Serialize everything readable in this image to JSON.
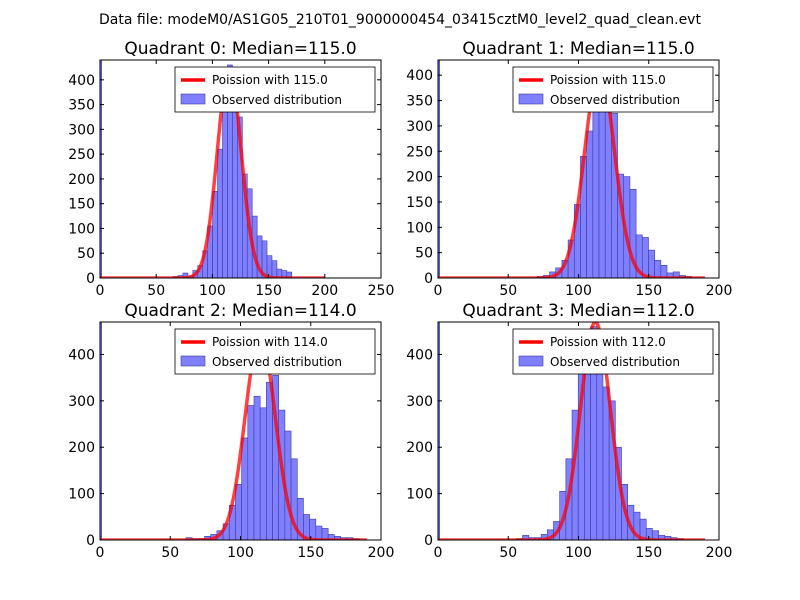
{
  "figure": {
    "suptitle": "Data file: modeM0/AS1G05_210T01_9000000454_03415cztM0_level2_quad_clean.evt",
    "colors": {
      "bar_fill": "#8080ff",
      "bar_edge": "#3a3aa8",
      "curve": "#ff0000",
      "axes": "#000000"
    }
  },
  "chart_data": [
    {
      "type": "bar",
      "title": "Quadrant 0: Median=115.0",
      "legend": [
        "Poission with 115.0",
        "Observed distribution"
      ],
      "legend_position": "top-right",
      "mean": 115,
      "xlim": [
        0,
        250
      ],
      "ylim": [
        0,
        440
      ],
      "xticks": [
        0,
        50,
        100,
        150,
        200,
        250
      ],
      "yticks": [
        0,
        50,
        100,
        150,
        200,
        250,
        300,
        350,
        400
      ],
      "edge_bar": {
        "x0": 0,
        "x1": 1.5,
        "value": 440
      },
      "bin_width": 4.4,
      "bins": [
        [
          65,
          3
        ],
        [
          69.4,
          5
        ],
        [
          73.8,
          10
        ],
        [
          78.2,
          4
        ],
        [
          82.6,
          15
        ],
        [
          87,
          25
        ],
        [
          91.4,
          55
        ],
        [
          95.8,
          105
        ],
        [
          100.2,
          175
        ],
        [
          104.6,
          260
        ],
        [
          109,
          395
        ],
        [
          113.4,
          430
        ],
        [
          117.8,
          395
        ],
        [
          122.2,
          325
        ],
        [
          126.6,
          210
        ],
        [
          131,
          180
        ],
        [
          135.4,
          125
        ],
        [
          139.8,
          85
        ],
        [
          144.2,
          75
        ],
        [
          148.6,
          45
        ],
        [
          153,
          35
        ],
        [
          157.4,
          18
        ],
        [
          161.8,
          15
        ],
        [
          166.2,
          12
        ]
      ],
      "curve": {
        "x0": 0,
        "x1": 200,
        "amp": 420,
        "sigma": 10.7
      }
    },
    {
      "type": "bar",
      "title": "Quadrant 1: Median=115.0",
      "legend": [
        "Poission with 115.0",
        "Observed distribution"
      ],
      "legend_position": "top-right",
      "mean": 115,
      "xlim": [
        0,
        200
      ],
      "ylim": [
        0,
        430
      ],
      "xticks": [
        0,
        50,
        100,
        150,
        200
      ],
      "yticks": [
        0,
        50,
        100,
        150,
        200,
        250,
        300,
        350,
        400
      ],
      "edge_bar": {
        "x0": 0,
        "x1": 1.2,
        "value": 430
      },
      "bin_width": 4.4,
      "bins": [
        [
          70.6,
          3
        ],
        [
          75,
          5
        ],
        [
          79.4,
          12
        ],
        [
          83.8,
          20
        ],
        [
          88.2,
          35
        ],
        [
          92.6,
          75
        ],
        [
          97,
          145
        ],
        [
          101.4,
          240
        ],
        [
          105.8,
          290
        ],
        [
          110.2,
          360
        ],
        [
          114.6,
          395
        ],
        [
          119,
          400
        ],
        [
          123.4,
          325
        ],
        [
          127.8,
          205
        ],
        [
          132.2,
          200
        ],
        [
          136.6,
          175
        ],
        [
          141,
          85
        ],
        [
          145.4,
          80
        ],
        [
          149.8,
          55
        ],
        [
          154.2,
          35
        ],
        [
          158.6,
          25
        ],
        [
          163,
          10
        ],
        [
          167.4,
          12
        ],
        [
          171.8,
          5
        ],
        [
          176.2,
          3
        ]
      ],
      "curve": {
        "x0": 0,
        "x1": 190,
        "amp": 410,
        "sigma": 10.7
      }
    },
    {
      "type": "bar",
      "title": "Quadrant 2: Median=114.0",
      "legend": [
        "Poission with 114.0",
        "Observed distribution"
      ],
      "legend_position": "top-right",
      "mean": 114,
      "xlim": [
        0,
        200
      ],
      "ylim": [
        0,
        470
      ],
      "xticks": [
        0,
        50,
        100,
        150,
        200
      ],
      "yticks": [
        0,
        100,
        200,
        300,
        400
      ],
      "edge_bar": {
        "x0": 0,
        "x1": 1.2,
        "value": 470
      },
      "bin_width": 4.4,
      "bins": [
        [
          61.2,
          5
        ],
        [
          65.6,
          3
        ],
        [
          70,
          3
        ],
        [
          74.4,
          8
        ],
        [
          78.8,
          12
        ],
        [
          83.2,
          20
        ],
        [
          87.6,
          35
        ],
        [
          92,
          75
        ],
        [
          96.4,
          120
        ],
        [
          100.8,
          220
        ],
        [
          105.2,
          290
        ],
        [
          109.6,
          310
        ],
        [
          114,
          285
        ],
        [
          118.4,
          340
        ],
        [
          122.8,
          355
        ],
        [
          127.2,
          280
        ],
        [
          131.6,
          235
        ],
        [
          136,
          175
        ],
        [
          140.4,
          90
        ],
        [
          144.8,
          55
        ],
        [
          149.2,
          45
        ],
        [
          153.6,
          30
        ],
        [
          158,
          25
        ],
        [
          162.4,
          12
        ],
        [
          166.8,
          8
        ],
        [
          171.2,
          5
        ],
        [
          175.6,
          5
        ],
        [
          180,
          3
        ]
      ],
      "curve": {
        "x0": 0,
        "x1": 190,
        "amp": 440,
        "sigma": 10.7
      }
    },
    {
      "type": "bar",
      "title": "Quadrant 3: Median=112.0",
      "legend": [
        "Poission with 112.0",
        "Observed distribution"
      ],
      "legend_position": "top-right",
      "mean": 112,
      "xlim": [
        0,
        200
      ],
      "ylim": [
        0,
        470
      ],
      "xticks": [
        0,
        50,
        100,
        150,
        200
      ],
      "yticks": [
        0,
        100,
        200,
        300,
        400
      ],
      "edge_bar": {
        "x0": 0,
        "x1": 1.2,
        "value": 470
      },
      "bin_width": 4.4,
      "bins": [
        [
          55.8,
          3
        ],
        [
          60.2,
          10
        ],
        [
          64.6,
          5
        ],
        [
          69,
          5
        ],
        [
          73.4,
          12
        ],
        [
          77.8,
          22
        ],
        [
          82.2,
          40
        ],
        [
          86.6,
          105
        ],
        [
          91,
          175
        ],
        [
          95.4,
          280
        ],
        [
          99.8,
          360
        ],
        [
          104.2,
          395
        ],
        [
          108.6,
          460
        ],
        [
          113,
          400
        ],
        [
          117.4,
          330
        ],
        [
          121.8,
          300
        ],
        [
          126.2,
          200
        ],
        [
          130.6,
          120
        ],
        [
          135,
          75
        ],
        [
          139.4,
          60
        ],
        [
          143.8,
          45
        ],
        [
          148.2,
          25
        ],
        [
          152.6,
          20
        ],
        [
          157,
          10
        ],
        [
          161.4,
          8
        ],
        [
          165.8,
          5
        ],
        [
          170.2,
          3
        ]
      ],
      "curve": {
        "x0": 0,
        "x1": 190,
        "amp": 470,
        "sigma": 10.6
      }
    }
  ]
}
